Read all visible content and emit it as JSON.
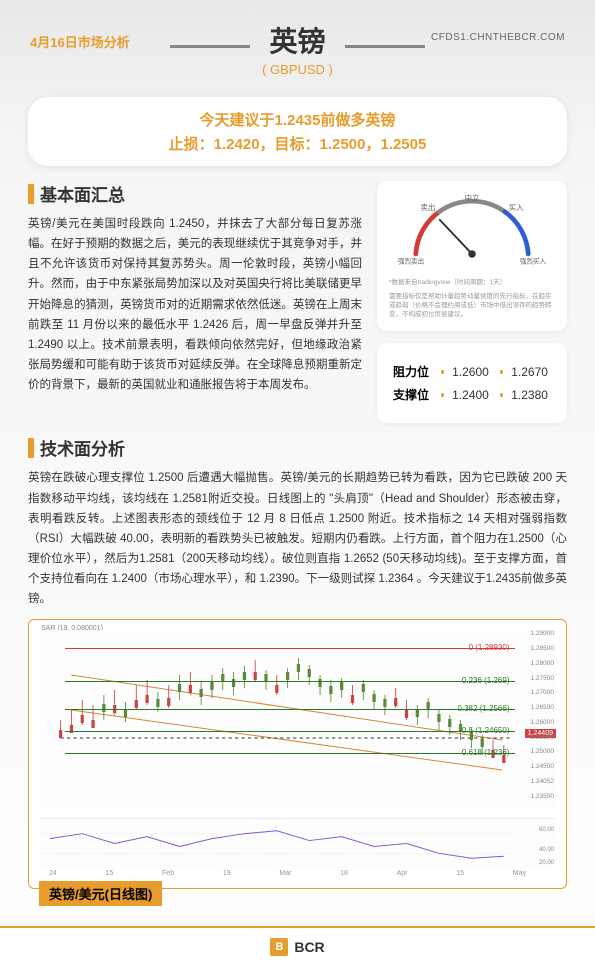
{
  "header": {
    "date": "4月16日市场分析",
    "title": "英镑",
    "subtitle": "( GBPUSD )",
    "url": "CFDS1.CHNTHEBCR.COM"
  },
  "recommendation": {
    "line1": "今天建议于1.2435前做多英镑",
    "line2": "止损：1.2420，目标：1.2500，1.2505"
  },
  "fundamental": {
    "title": "基本面汇总",
    "text": "英镑/美元在美国时段跌向 1.2450，并抹去了大部分每日复苏涨幅。在好于预期的数据之后，美元的表现继续优于其竞争对手，并且不允许该货币对保持其复苏势头。周一伦敦时段，英镑小幅回升。然而，由于中东紧张局势加深以及对英国央行将比美联储更早开始降息的猜测，英镑货币对的近期需求依然低迷。英镑在上周末前跌至 11 月份以来的最低水平 1.2426 后，周一早盘反弹并升至 1.2490 以上。技术前景表明，看跌倾向依然完好，但地缘政治紧张局势缓和可能有助于该货币对延续反弹。在全球降息预期重新定价的背景下，最新的英国就业和通胀报告将于本周发布。"
  },
  "gauge": {
    "labels": {
      "strong_sell": "强烈卖出",
      "sell": "卖出",
      "neutral": "中立",
      "buy": "买入",
      "strong_buy": "强烈买入"
    },
    "note1": "*数据来自tradingview（时间周期：1天）",
    "note2": "需要指标仅是帮助计量趋势动量倾度的先行指标，在趋实或趋弱（价格不会理约周或低）市场中借出误存的趋势转变，不构成初位贸易建议。",
    "colors": {
      "sell": "#d43838",
      "neutral": "#888888",
      "buy": "#2c5fd4"
    }
  },
  "levels": {
    "resistance": {
      "label": "阻力位",
      "v1": "1.2600",
      "v2": "1.2670"
    },
    "support": {
      "label": "支撑位",
      "v1": "1.2400",
      "v2": "1.2380"
    }
  },
  "technical": {
    "title": "技术面分析",
    "text": "英镑在跌破心理支撑位 1.2500 后遭遇大幅抛售。英镑/美元的长期趋势已转为看跌，因为它已跌破 200 天指数移动平均线，该均线在 1.2581附近交投。日线图上的 \"头肩顶\"（Head and Shoulder）形态被击穿，表明看跌反转。上述图表形态的颈线位于 12 月 8 日低点 1.2500 附近。技术指标之 14 天相对强弱指数（RSI）大幅跌破 40.00，表明新的看跌势头已被触发。短期内仍看跌。上行方面，首个阻力在1.2500（心理价位水平），然后为1.2581（200天移动均线）。破位则直指 1.2652 (50天移动均线)。至于支撑方面，首个支持位看向在 1.2400（市场心理水平），和 1.2390。下一级则试探 1.2364 。今天建议于1.2435前做多英镑。"
  },
  "chart": {
    "caption": "英镑/美元(日线图)",
    "sar_label": "SAR (19, 0.080001)",
    "fib_levels": [
      {
        "ratio": "0",
        "price": "(1.28930)",
        "pct": 10,
        "color": "#d43838"
      },
      {
        "ratio": "0.236",
        "price": "(1.269)",
        "pct": 28,
        "color": "#2a7a2a"
      },
      {
        "ratio": "0.382",
        "price": "(1.2566)",
        "pct": 44,
        "color": "#2a7a2a"
      },
      {
        "ratio": "0.5",
        "price": "(1.24650)",
        "pct": 56,
        "color": "#2a7a2a"
      },
      {
        "ratio": "0.618",
        "price": "(1.236)",
        "pct": 68,
        "color": "#2a7a2a"
      }
    ],
    "price_ticks": [
      "1.29000",
      "1.28500",
      "1.28000",
      "1.27500",
      "1.27000",
      "1.26500",
      "1.26000",
      "1.25500",
      "1.25000",
      "1.24500",
      "1.24052",
      "1.23500"
    ],
    "current_price": "1.24409",
    "rsi_ticks": [
      "60.00",
      "40.00",
      "35.88",
      "20.00"
    ],
    "trend_colors": {
      "up": "#5a8a3a",
      "down": "#c94545",
      "channel": "#d48838"
    },
    "time_labels": [
      "24",
      "15",
      "Feb",
      "19",
      "Mar",
      "18",
      "Apr",
      "15",
      "May"
    ]
  },
  "footer": {
    "logo_letter": "B",
    "text": "BCR"
  }
}
